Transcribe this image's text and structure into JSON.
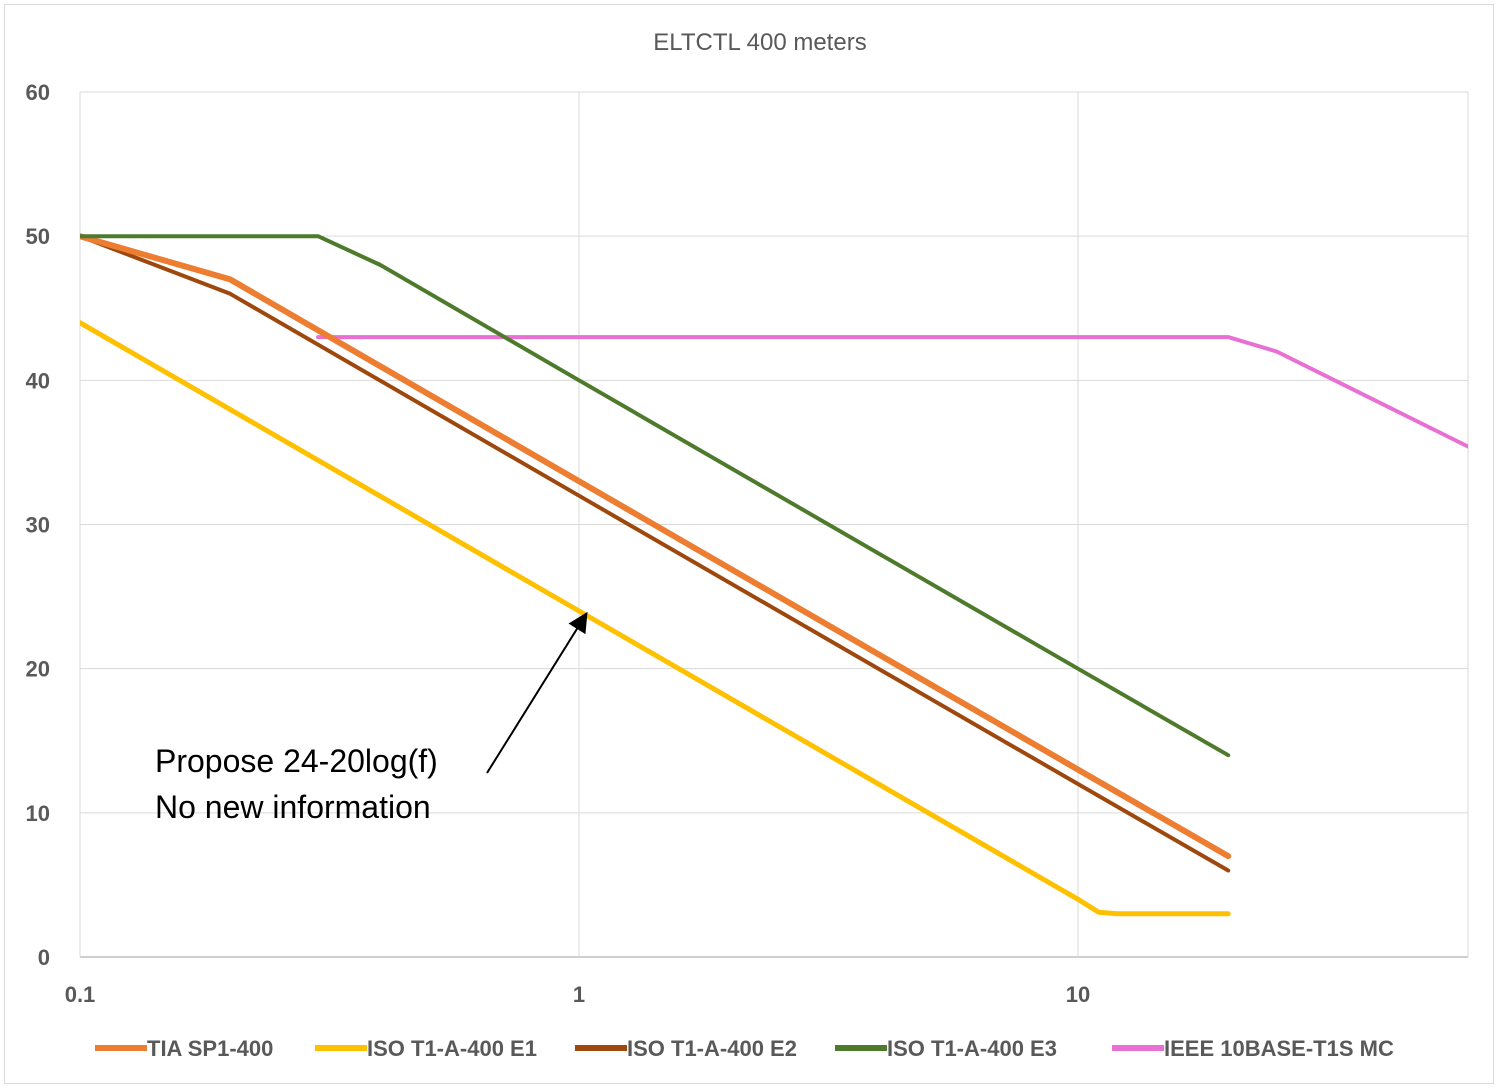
{
  "chart_data": {
    "type": "line",
    "title": "ELTCTL 400 meters",
    "xlabel": "",
    "ylabel": "",
    "x_scale": "log",
    "xlim": [
      0.1,
      78
    ],
    "ylim": [
      0,
      60
    ],
    "x_ticks": [
      "0.1",
      "1",
      "10"
    ],
    "y_ticks": [
      "0",
      "10",
      "20",
      "30",
      "40",
      "50",
      "60"
    ],
    "grid": true,
    "legend_position": "bottom",
    "series": [
      {
        "name": "TIA SP1-400",
        "color": "#ed7d31",
        "points": [
          [
            0.1,
            50
          ],
          [
            0.2,
            47
          ],
          [
            1,
            33
          ],
          [
            10,
            13
          ],
          [
            20,
            7
          ]
        ]
      },
      {
        "name": "ISO T1-A-400 E1",
        "color": "#ffc000",
        "points": [
          [
            0.1,
            44
          ],
          [
            1,
            24
          ],
          [
            10,
            4
          ],
          [
            11,
            3.1
          ],
          [
            12,
            3
          ],
          [
            20,
            3
          ]
        ]
      },
      {
        "name": "ISO T1-A-400 E2",
        "color": "#9e480e",
        "points": [
          [
            0.1,
            50
          ],
          [
            0.2,
            46
          ],
          [
            1,
            32
          ],
          [
            10,
            12
          ],
          [
            20,
            6
          ]
        ]
      },
      {
        "name": "ISO T1-A-400 E3",
        "color": "#4e7a2c",
        "points": [
          [
            0.1,
            50
          ],
          [
            0.3,
            50
          ],
          [
            0.4,
            48
          ],
          [
            1,
            40
          ],
          [
            10,
            20
          ],
          [
            20,
            14
          ]
        ]
      },
      {
        "name": "IEEE 10BASE-T1S MC",
        "color": "#e86fd3",
        "points": [
          [
            0.3,
            43
          ],
          [
            20,
            43
          ],
          [
            25,
            42
          ],
          [
            78,
            33.5
          ]
        ]
      }
    ],
    "annotations": [
      {
        "lines": [
          "Propose 24-20log(f)",
          "No new information"
        ],
        "arrow_to": [
          1.03,
          23.7
        ]
      }
    ]
  }
}
